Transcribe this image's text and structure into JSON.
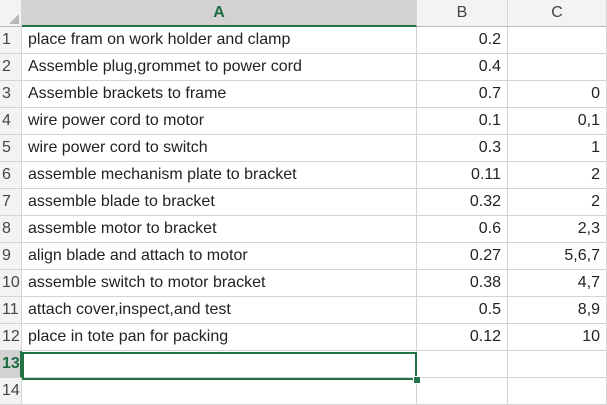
{
  "columns": [
    "A",
    "B",
    "C"
  ],
  "selected_column": "A",
  "rows": [
    {
      "n": "1",
      "a": "place fram on work holder and clamp",
      "b": "0.2",
      "c": ""
    },
    {
      "n": "2",
      "a": "Assemble plug,grommet to power cord",
      "b": "0.4",
      "c": ""
    },
    {
      "n": "3",
      "a": "Assemble brackets to frame",
      "b": "0.7",
      "c": "0"
    },
    {
      "n": "4",
      "a": "wire power cord to motor",
      "b": "0.1",
      "c": "0,1"
    },
    {
      "n": "5",
      "a": "wire power cord to switch",
      "b": "0.3",
      "c": "1"
    },
    {
      "n": "6",
      "a": "assemble mechanism plate to bracket",
      "b": "0.11",
      "c": "2"
    },
    {
      "n": "7",
      "a": "assemble blade to bracket",
      "b": "0.32",
      "c": "2"
    },
    {
      "n": "8",
      "a": "assemble motor to bracket",
      "b": "0.6",
      "c": "2,3"
    },
    {
      "n": "9",
      "a": "align blade and attach to motor",
      "b": "0.27",
      "c": "5,6,7"
    },
    {
      "n": "10",
      "a": "assemble switch to motor bracket",
      "b": "0.38",
      "c": "4,7"
    },
    {
      "n": "11",
      "a": "attach cover,inspect,and test",
      "b": "0.5",
      "c": "8,9"
    },
    {
      "n": "12",
      "a": "place in tote pan for packing",
      "b": "0.12",
      "c": "10"
    },
    {
      "n": "13",
      "a": "",
      "b": "",
      "c": ""
    },
    {
      "n": "14",
      "a": "",
      "b": "",
      "c": ""
    }
  ],
  "active_row": "13",
  "accent_color": "#217346"
}
